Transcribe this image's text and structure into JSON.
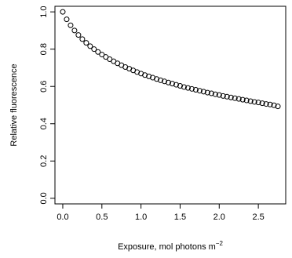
{
  "chart_data": {
    "type": "scatter",
    "title": "",
    "xlabel": "Exposure, mol photons m",
    "xlabel_superscript": "−2",
    "ylabel": "Relative fluorescence",
    "xlim": [
      -0.1,
      2.85
    ],
    "ylim": [
      -0.03,
      1.03
    ],
    "xticks": [
      0.0,
      0.5,
      1.0,
      1.5,
      2.0,
      2.5
    ],
    "xtick_labels": [
      "0.0",
      "0.5",
      "1.0",
      "1.5",
      "2.0",
      "2.5"
    ],
    "yticks": [
      0.0,
      0.2,
      0.4,
      0.6,
      0.8,
      1.0
    ],
    "ytick_labels": [
      "0.0",
      "0.2",
      "0.4",
      "0.6",
      "0.8",
      "1.0"
    ],
    "grid": false,
    "marker": "open-circle",
    "series": [
      {
        "x": [
          0.0,
          0.05,
          0.1,
          0.15,
          0.2,
          0.25,
          0.3,
          0.35,
          0.4,
          0.45,
          0.5,
          0.55,
          0.6,
          0.65,
          0.7,
          0.75,
          0.8,
          0.85,
          0.9,
          0.95,
          1.0,
          1.05,
          1.1,
          1.15,
          1.2,
          1.25,
          1.3,
          1.35,
          1.4,
          1.45,
          1.5,
          1.55,
          1.6,
          1.65,
          1.7,
          1.75,
          1.8,
          1.85,
          1.9,
          1.95,
          2.0,
          2.05,
          2.1,
          2.15,
          2.2,
          2.25,
          2.3,
          2.35,
          2.4,
          2.45,
          2.5,
          2.55,
          2.6,
          2.65,
          2.7,
          2.75
        ],
        "y": [
          1.0,
          0.96,
          0.928,
          0.9,
          0.876,
          0.854,
          0.834,
          0.816,
          0.8,
          0.785,
          0.771,
          0.758,
          0.746,
          0.735,
          0.724,
          0.714,
          0.704,
          0.695,
          0.686,
          0.677,
          0.669,
          0.661,
          0.654,
          0.647,
          0.64,
          0.633,
          0.627,
          0.621,
          0.615,
          0.609,
          0.603,
          0.597,
          0.592,
          0.587,
          0.582,
          0.577,
          0.572,
          0.567,
          0.563,
          0.558,
          0.554,
          0.549,
          0.545,
          0.541,
          0.537,
          0.533,
          0.529,
          0.525,
          0.521,
          0.517,
          0.514,
          0.51,
          0.506,
          0.503,
          0.499,
          0.493
        ]
      }
    ]
  }
}
